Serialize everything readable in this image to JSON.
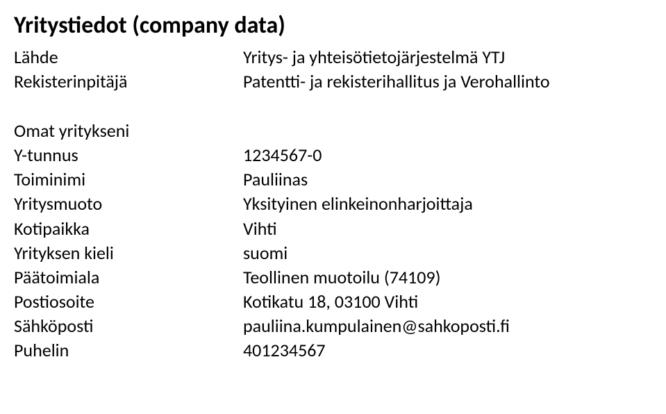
{
  "title": "Yritystiedot (company data)",
  "header": {
    "lahde": {
      "label": "Lähde",
      "value": "Yritys- ja yhteisötietojärjestelmä YTJ"
    },
    "rekisterinpitaja": {
      "label": "Rekisterinpitäjä",
      "value": "Patentti- ja rekisterihallitus ja Verohallinto"
    }
  },
  "section_heading": "Omat yritykseni",
  "fields": {
    "ytunnus": {
      "label": "Y-tunnus",
      "value": "1234567-0"
    },
    "toiminimi": {
      "label": "Toiminimi",
      "value": "Pauliinas"
    },
    "yritysmuoto": {
      "label": "Yritysmuoto",
      "value": "Yksityinen elinkeinonharjoittaja"
    },
    "kotipaikka": {
      "label": "Kotipaikka",
      "value": "Vihti"
    },
    "kieli": {
      "label": "Yrityksen kieli",
      "value": "suomi"
    },
    "paatoimiala": {
      "label": "Päätoimiala",
      "value": "Teollinen muotoilu (74109)"
    },
    "postiosoite": {
      "label": "Postiosoite",
      "value": "Kotikatu 18, 03100 Vihti"
    },
    "sahkoposti": {
      "label": "Sähköposti",
      "value": "pauliina.kumpulainen@sahkoposti.fi"
    },
    "puhelin": {
      "label": "Puhelin",
      "value": "401234567"
    }
  }
}
